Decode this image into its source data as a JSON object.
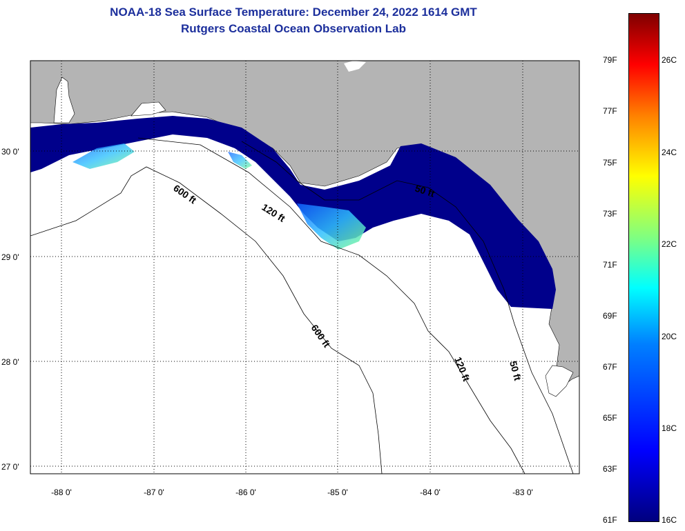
{
  "title": {
    "line1": "NOAA-18 Sea Surface Temperature:  December 24, 2022 1614 GMT",
    "line2": "Rutgers Coastal Ocean Observation Lab"
  },
  "map": {
    "lon_labels": [
      "-88 0'",
      "-87 0'",
      "-86 0'",
      "-85 0'",
      "-84 0'",
      "-83 0'"
    ],
    "lat_labels": [
      "30 0'",
      "29 0'",
      "28 0'",
      "27 0'"
    ],
    "contours": [
      {
        "label": "600 ft",
        "depth_ft": 600
      },
      {
        "label": "120 ft",
        "depth_ft": 120
      },
      {
        "label": "50 ft",
        "depth_ft": 50
      }
    ],
    "contour_labels": [
      "600 ft",
      "120 ft",
      "50 ft",
      "600 ft",
      "120 ft",
      "50 ft"
    ],
    "colors": {
      "land": "#b4b4b4",
      "water": "#ffffff",
      "sst_cold": "#00008b"
    }
  },
  "colorbar": {
    "fahrenheit": [
      "79F",
      "77F",
      "75F",
      "73F",
      "71F",
      "69F",
      "67F",
      "65F",
      "63F",
      "61F"
    ],
    "celsius": [
      "26C",
      "24C",
      "22C",
      "20C",
      "18C",
      "16C"
    ]
  }
}
